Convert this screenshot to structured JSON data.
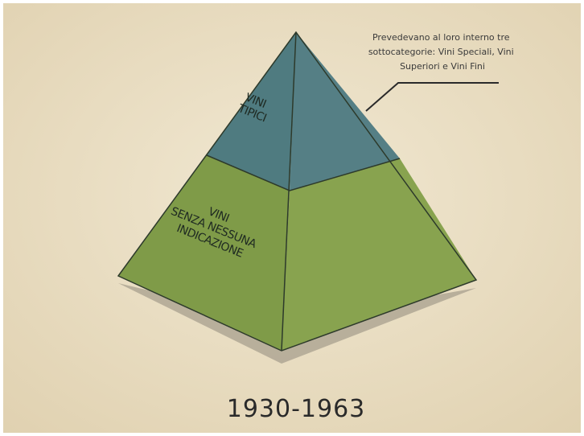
{
  "pyramid": {
    "levels": [
      {
        "label": [
          "VINI",
          "TIPICI"
        ]
      },
      {
        "label": [
          "VINI",
          "SENZA NESSUNA",
          "INDICAZIONE"
        ]
      }
    ]
  },
  "annotation": [
    "Prevedevano al loro interno tre",
    "sottocategorie: Vini Speciali, Vini",
    "Superiori e Vini Fini"
  ],
  "footer": {
    "year": "1930-1963"
  }
}
